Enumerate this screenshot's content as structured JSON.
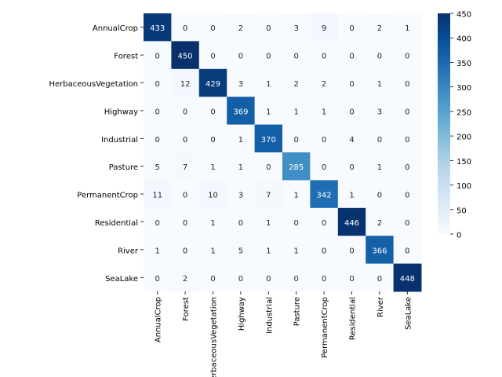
{
  "chart_data": {
    "type": "heatmap",
    "title": "",
    "xlabel": "",
    "ylabel": "",
    "x_categories": [
      "AnnualCrop",
      "Forest",
      "HerbaceousVegetation",
      "Highway",
      "Industrial",
      "Pasture",
      "PermanentCrop",
      "Residential",
      "River",
      "SeaLake"
    ],
    "y_categories": [
      "AnnualCrop",
      "Forest",
      "HerbaceousVegetation",
      "Highway",
      "Industrial",
      "Pasture",
      "PermanentCrop",
      "Residential",
      "River",
      "SeaLake"
    ],
    "values": [
      [
        433,
        0,
        0,
        2,
        0,
        3,
        9,
        0,
        2,
        1
      ],
      [
        0,
        450,
        0,
        0,
        0,
        0,
        0,
        0,
        0,
        0
      ],
      [
        0,
        12,
        429,
        3,
        1,
        2,
        2,
        0,
        1,
        0
      ],
      [
        0,
        0,
        0,
        369,
        1,
        1,
        1,
        0,
        3,
        0
      ],
      [
        0,
        0,
        0,
        1,
        370,
        0,
        0,
        4,
        0,
        0
      ],
      [
        5,
        7,
        1,
        1,
        0,
        285,
        0,
        0,
        1,
        0
      ],
      [
        11,
        0,
        10,
        3,
        7,
        1,
        342,
        1,
        0,
        0
      ],
      [
        0,
        0,
        1,
        0,
        1,
        0,
        0,
        446,
        2,
        0
      ],
      [
        1,
        0,
        1,
        5,
        1,
        1,
        0,
        0,
        366,
        0
      ],
      [
        0,
        2,
        0,
        0,
        0,
        0,
        0,
        0,
        0,
        448
      ]
    ],
    "colorbar": {
      "min": 0,
      "max": 450,
      "ticks": [
        0,
        50,
        100,
        150,
        200,
        250,
        300,
        350,
        400,
        450
      ],
      "colormap": "Blues"
    },
    "annotations": true,
    "grid": false
  }
}
